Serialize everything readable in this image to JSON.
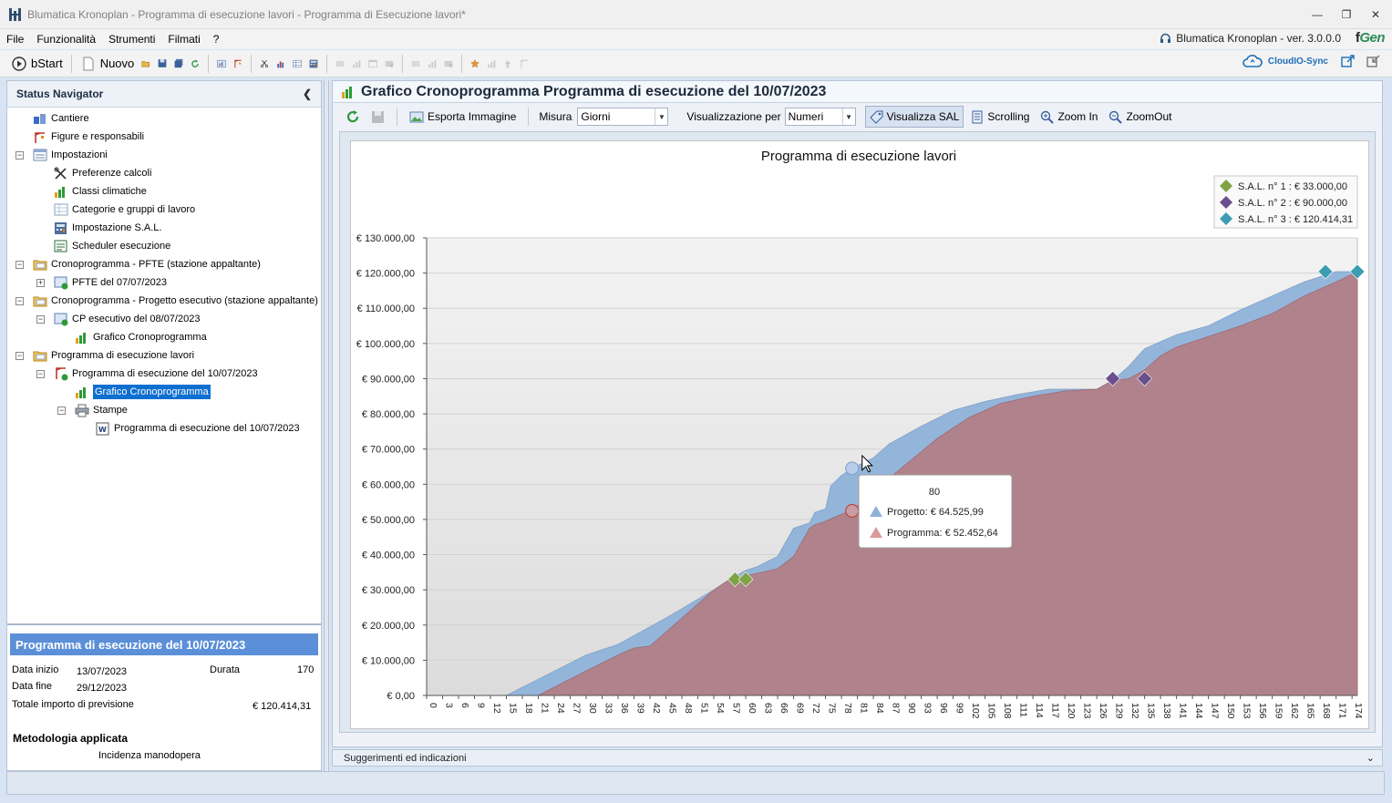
{
  "window": {
    "title": "Blumatica Kronoplan - Programma di esecuzione lavori - Programma di Esecuzione lavori*",
    "controls": [
      "minimize",
      "restore",
      "close"
    ]
  },
  "menu": {
    "items": [
      "File",
      "Funzionalità",
      "Strumenti",
      "Filmati",
      "?"
    ],
    "version_label": "Blumatica Kronoplan - ver. 3.0.0.0",
    "brand": "Gen"
  },
  "toolbar": {
    "bstart_label": "bStart",
    "nuovo_label": "Nuovo",
    "cloud_label": "CloudIO-Sync"
  },
  "navigator": {
    "title": "Status Navigator",
    "tree": [
      {
        "label": "Cantiere",
        "icon": "site-icon",
        "level": 1
      },
      {
        "label": "Figure e responsabili",
        "icon": "people-icon",
        "level": 1
      },
      {
        "label": "Impostazioni",
        "icon": "settings-icon",
        "level": 1,
        "expanded": true
      },
      {
        "label": "Preferenze calcoli",
        "icon": "tools-icon",
        "level": 2
      },
      {
        "label": "Classi climatiche",
        "icon": "chart-icon",
        "level": 2
      },
      {
        "label": "Categorie e gruppi di lavoro",
        "icon": "table-icon",
        "level": 2
      },
      {
        "label": "Impostazione S.A.L.",
        "icon": "calculator-icon",
        "level": 2
      },
      {
        "label": "Scheduler esecuzione",
        "icon": "scheduler-icon",
        "level": 2
      },
      {
        "label": "Cronoprogramma - PFTE (stazione appaltante)",
        "icon": "folder-icon",
        "level": 1,
        "expanded": true
      },
      {
        "label": "PFTE  del 07/07/2023",
        "icon": "document-icon",
        "level": 2,
        "collapsed": true
      },
      {
        "label": "Cronoprogramma - Progetto esecutivo (stazione appaltante)",
        "icon": "folder-icon",
        "level": 1,
        "expanded": true
      },
      {
        "label": "CP esecutivo del 08/07/2023",
        "icon": "document-icon",
        "level": 2,
        "expanded": true
      },
      {
        "label": "Grafico Cronoprogramma",
        "icon": "chart-icon",
        "level": 3
      },
      {
        "label": "Programma di esecuzione lavori",
        "icon": "folder-icon",
        "level": 1,
        "expanded": true
      },
      {
        "label": "Programma di esecuzione del 10/07/2023",
        "icon": "crane-icon",
        "level": 2,
        "expanded": true
      },
      {
        "label": "Grafico Cronoprogramma",
        "icon": "chart-icon",
        "level": 3,
        "selected": true
      },
      {
        "label": "Stampe",
        "icon": "printer-icon",
        "level": 3,
        "expanded": true
      },
      {
        "label": "Programma di esecuzione del 10/07/2023",
        "icon": "word-icon",
        "level": 4
      }
    ]
  },
  "info": {
    "title": "Programma di esecuzione del 10/07/2023",
    "data_inizio_label": "Data inizio",
    "data_inizio": "13/07/2023",
    "durata_label": "Durata",
    "durata": "170",
    "data_fine_label": "Data fine",
    "data_fine": "29/12/2023",
    "totale_label": "Totale importo di previsione",
    "totale": "€ 120.414,31",
    "metodologia_label": "Metodologia applicata",
    "metodologia": "Incidenza manodopera"
  },
  "document": {
    "title": "Grafico Cronoprogramma Programma di esecuzione del 10/07/2023",
    "esporta_label": "Esporta Immagine",
    "misura_label": "Misura",
    "misura_value": "Giorni",
    "visualizzazione_label": "Visualizzazione per",
    "visualizzazione_value": "Numeri",
    "visualizza_sal_label": "Visualizza SAL",
    "scrolling_label": "Scrolling",
    "zoom_in_label": "Zoom In",
    "zoom_out_label": "ZoomOut"
  },
  "hints": {
    "label": "Suggerimenti ed indicazioni"
  },
  "colors": {
    "progetto": "#8fb2d9",
    "programma": "#b17f88",
    "sal1": "#7fa346",
    "sal2": "#6a4f8c",
    "sal3": "#3b9cb2",
    "selected": "#0f6fd1",
    "info_title": "#5b8fd8"
  },
  "chart_data": {
    "type": "area",
    "title": "Programma di esecuzione lavori",
    "ylim": [
      0,
      130000
    ],
    "xlim": [
      0,
      175
    ],
    "y_ticks": [
      "€ 0,00",
      "€ 10.000,00",
      "€ 20.000,00",
      "€ 30.000,00",
      "€ 40.000,00",
      "€ 50.000,00",
      "€ 60.000,00",
      "€ 70.000,00",
      "€ 80.000,00",
      "€ 90.000,00",
      "€ 100.000,00",
      "€ 110.000,00",
      "€ 120.000,00",
      "€ 130.000,00"
    ],
    "y_tick_values": [
      0,
      10000,
      20000,
      30000,
      40000,
      50000,
      60000,
      70000,
      80000,
      90000,
      100000,
      110000,
      120000,
      130000
    ],
    "x_ticks": [
      0,
      3,
      6,
      9,
      12,
      15,
      18,
      21,
      24,
      27,
      30,
      33,
      36,
      39,
      42,
      45,
      48,
      51,
      54,
      57,
      60,
      63,
      66,
      69,
      72,
      75,
      78,
      81,
      84,
      87,
      90,
      93,
      96,
      99,
      102,
      105,
      108,
      111,
      114,
      117,
      120,
      123,
      126,
      129,
      132,
      135,
      138,
      141,
      144,
      147,
      150,
      153,
      156,
      159,
      162,
      165,
      168,
      171,
      174
    ],
    "grid": true,
    "legend_position": "top-right",
    "series": [
      {
        "name": "Progetto",
        "x": [
          0,
          15,
          30,
          33,
          34,
          36,
          45,
          54,
          57,
          60,
          62,
          66,
          69,
          72,
          73,
          75,
          76,
          78,
          80,
          84,
          87,
          93,
          99,
          105,
          111,
          117,
          120,
          126,
          129,
          132,
          135,
          138,
          141,
          147,
          153,
          159,
          165,
          171,
          175
        ],
        "y": [
          0,
          0,
          11500,
          13000,
          13500,
          14500,
          22000,
          30000,
          33000,
          35500,
          36500,
          39500,
          47500,
          49000,
          52000,
          53000,
          59500,
          62500,
          64526,
          67500,
          71500,
          76500,
          81000,
          83500,
          85500,
          87000,
          87000,
          87000,
          89500,
          93500,
          98500,
          100500,
          102500,
          105000,
          109500,
          113500,
          117500,
          120414,
          120414
        ]
      },
      {
        "name": "Programma",
        "x": [
          0,
          21,
          30,
          36,
          39,
          42,
          48,
          54,
          57,
          60,
          63,
          66,
          69,
          72,
          73,
          75,
          78,
          80,
          84,
          90,
          96,
          102,
          108,
          114,
          120,
          126,
          129,
          132,
          135,
          138,
          141,
          147,
          153,
          159,
          165,
          171,
          175
        ],
        "y": [
          0,
          0,
          7000,
          11500,
          13500,
          14000,
          22000,
          30000,
          33000,
          34000,
          35000,
          36000,
          39500,
          47500,
          48500,
          49500,
          51500,
          52453,
          58000,
          65500,
          73000,
          79000,
          83000,
          85000,
          86500,
          87000,
          89500,
          90000,
          92500,
          96500,
          99000,
          102000,
          105000,
          108500,
          113500,
          117500,
          120414
        ]
      }
    ],
    "sal_markers": [
      {
        "name": "S.A.L. n° 1 : € 33.000,00",
        "color": "#7fa346",
        "points": [
          [
            58,
            33000
          ],
          [
            60,
            33000
          ]
        ]
      },
      {
        "name": "S.A.L. n° 2 : € 90.000,00",
        "color": "#6a4f8c",
        "points": [
          [
            129,
            90000
          ],
          [
            135,
            90000
          ]
        ]
      },
      {
        "name": "S.A.L. n° 3 : € 120.414,31",
        "color": "#3b9cb2",
        "points": [
          [
            169,
            120414
          ],
          [
            175,
            120414
          ]
        ]
      }
    ],
    "tooltip": {
      "x": 80,
      "title": "80",
      "progetto_label": "Progetto: € 64.525,99",
      "programma_label": "Programma: € 52.452,64",
      "progetto_value": 64525.99,
      "programma_value": 52452.64
    }
  }
}
